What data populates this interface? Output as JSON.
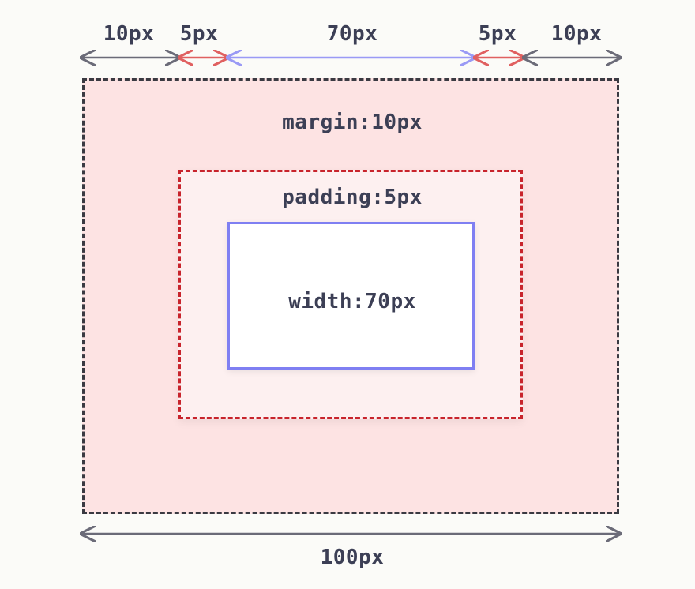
{
  "dimensions": {
    "top": [
      {
        "id": "left-margin",
        "label": "10px"
      },
      {
        "id": "left-padding",
        "label": "5px"
      },
      {
        "id": "content",
        "label": "70px"
      },
      {
        "id": "right-padding",
        "label": "5px"
      },
      {
        "id": "right-margin",
        "label": "10px"
      }
    ],
    "total": {
      "label": "100px"
    }
  },
  "boxes": {
    "margin": {
      "label": "margin:10px"
    },
    "padding": {
      "label": "padding:5px"
    },
    "content": {
      "label": "width:70px"
    }
  },
  "colors": {
    "margin_arrow": "#6b6b78",
    "padding_arrow": "#e06060",
    "content_arrow": "#9a9af5",
    "margin_fill": "#fde3e3",
    "padding_fill": "#fdf0f0",
    "content_border": "#7f7ff2"
  }
}
